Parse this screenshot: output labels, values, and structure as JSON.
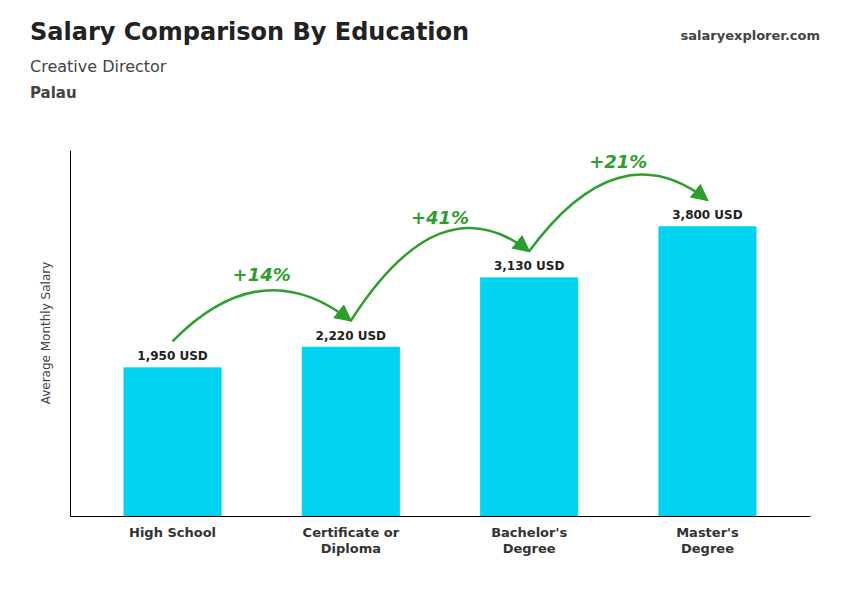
{
  "chart_data": {
    "type": "bar",
    "title": "Salary Comparison By Education",
    "subtitle": "Creative Director",
    "country": "Palau",
    "brand": [
      "salary",
      "explorer",
      ".com"
    ],
    "y_label": "Average Monthly Salary",
    "categories": [
      "High School",
      "Certificate or\nDiploma",
      "Bachelor's\nDegree",
      "Master's\nDegree"
    ],
    "values": [
      1950,
      2220,
      3130,
      3800
    ],
    "value_labels": [
      "1,950 USD",
      "2,220 USD",
      "3,130 USD",
      "3,800 USD"
    ],
    "data_labels": true,
    "annotations": [
      "+14%",
      "+41%",
      "+21%"
    ],
    "color": "#00d4f0",
    "ylim": [
      0,
      4800
    ],
    "yticks": [],
    "tick_labels": "x",
    "grid": false
  }
}
